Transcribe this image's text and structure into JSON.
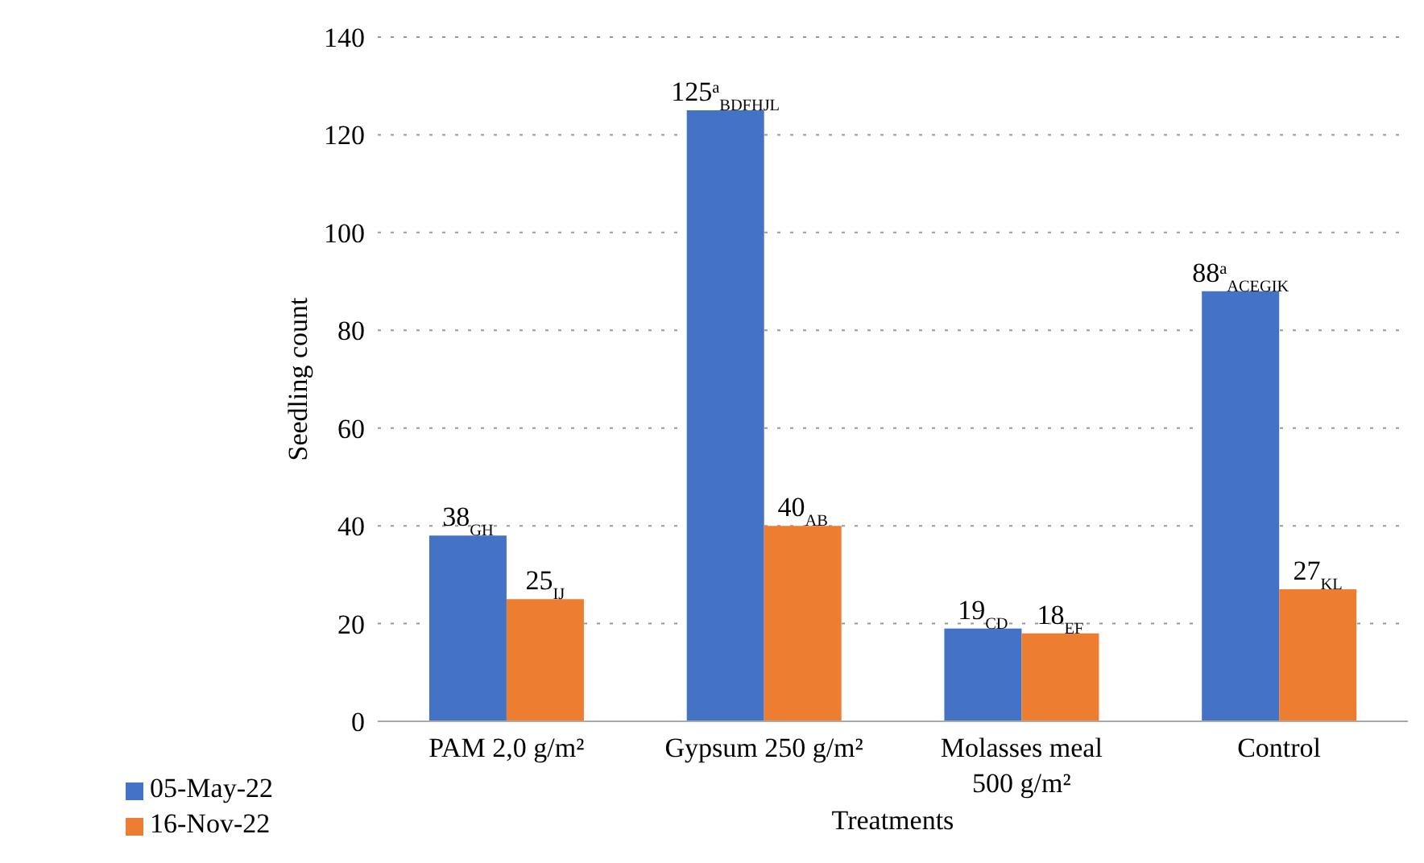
{
  "chart_data": {
    "type": "bar",
    "xlabel": "Treatments",
    "ylabel": "Seedling count",
    "categories": [
      "PAM 2,0 g/m²",
      "Gypsum 250 g/m²",
      "Molasses meal 500 g/m²",
      "Control"
    ],
    "series": [
      {
        "name": "05-May-22",
        "color": "#4472c4",
        "values": [
          38,
          125,
          19,
          88
        ],
        "value_labels": [
          "38$_{GH}$",
          "125$^{a}$$_{BDFHJL}$",
          "19$_{CD}$",
          "88$^{a}$$_{ACEGIK}$"
        ]
      },
      {
        "name": "16-Nov-22",
        "color": "#ed7d31",
        "values": [
          25,
          40,
          18,
          27
        ],
        "value_labels": [
          "25$_{IJ}$",
          "40$_{AB}$",
          "18$_{EF}$",
          "27$_{KL}$"
        ]
      }
    ],
    "ylim": [
      0,
      140
    ],
    "yticks": [
      0,
      20,
      40,
      60,
      80,
      100,
      120,
      140
    ],
    "grid": "y",
    "legend": "bottom left"
  }
}
